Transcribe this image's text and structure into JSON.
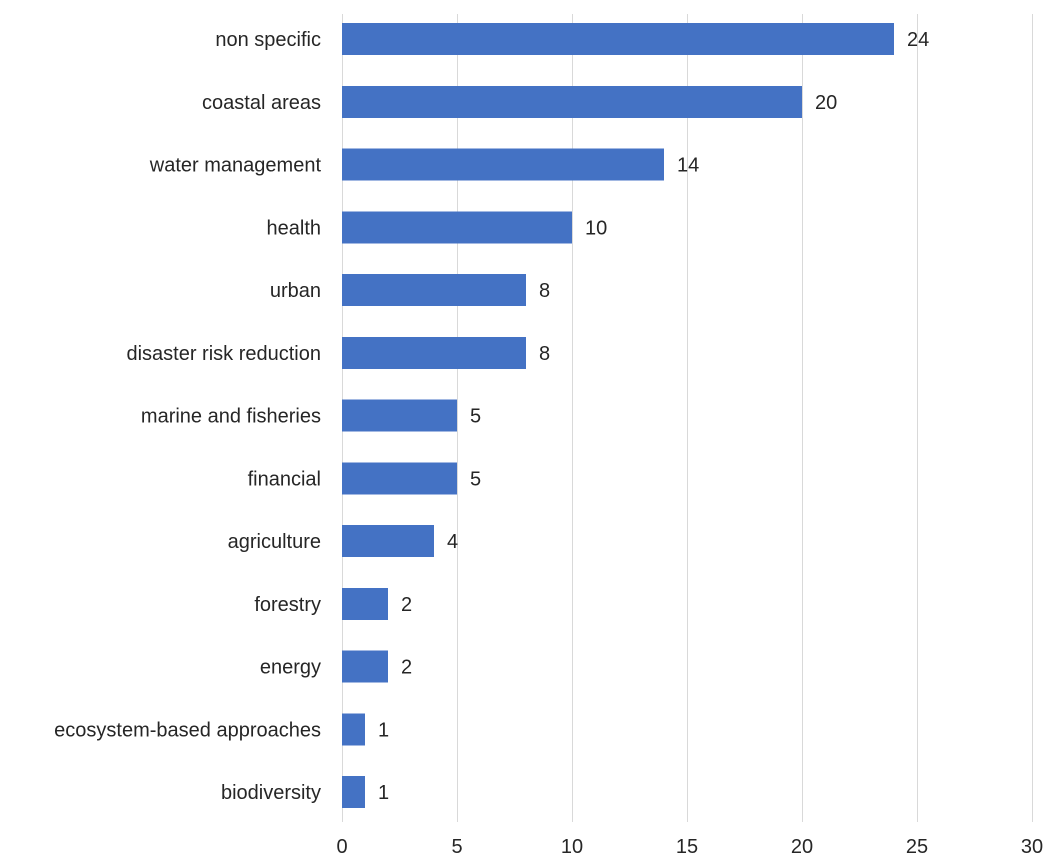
{
  "chart_data": {
    "type": "bar",
    "orientation": "horizontal",
    "categories": [
      "non specific",
      "coastal areas",
      "water management",
      "health",
      "urban",
      "disaster risk reduction",
      "marine and fisheries",
      "financial",
      "agriculture",
      "forestry",
      "energy",
      "ecosystem-based approaches",
      "biodiversity"
    ],
    "values": [
      24,
      20,
      14,
      10,
      8,
      8,
      5,
      5,
      4,
      2,
      2,
      1,
      1
    ],
    "title": "",
    "xlabel": "",
    "ylabel": "",
    "xlim": [
      0,
      30
    ],
    "xticks": [
      0,
      5,
      10,
      15,
      20,
      25,
      30
    ],
    "grid": "vertical",
    "legend": "none",
    "data_labels": true,
    "colors": {
      "bar": "#4472C4",
      "grid": "#d9d9d9",
      "text": "#262626"
    }
  }
}
